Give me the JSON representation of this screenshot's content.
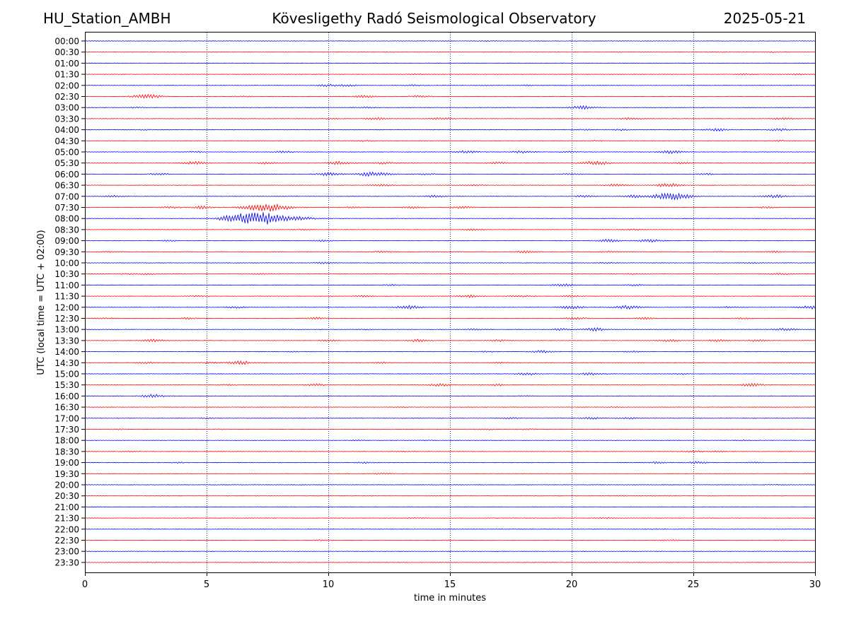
{
  "header": {
    "station": "HU_Station_AMBH",
    "observatory": "Kövesligethy Radó Seismological Observatory",
    "date": "2025-05-21"
  },
  "chart_data": {
    "type": "line",
    "title": "Kövesligethy Radó Seismological Observatory",
    "xlabel": "time in minutes",
    "ylabel": "UTC (local time = UTC + 02:00)",
    "xlim": [
      0,
      30
    ],
    "x_ticks": [
      "0",
      "5",
      "10",
      "15",
      "20",
      "25",
      "30"
    ],
    "grid": "vertical dotted at x ticks",
    "colors": {
      "even_rows": "#0000ff",
      "odd_rows": "#ff0000",
      "grid": "#000080"
    },
    "rows": [
      {
        "label": "00:00",
        "events": [
          {
            "x": 16.5,
            "amp": 0.5
          }
        ]
      },
      {
        "label": "00:30",
        "events": [
          {
            "x": 28.3,
            "amp": 0.6
          },
          {
            "x": 26.0,
            "amp": 0.4
          }
        ]
      },
      {
        "label": "01:00",
        "events": []
      },
      {
        "label": "01:30",
        "events": [
          {
            "x": 27.1,
            "amp": 0.8
          },
          {
            "x": 29.3,
            "amp": 1.0
          },
          {
            "x": 13.5,
            "amp": 0.4
          }
        ]
      },
      {
        "label": "02:00",
        "events": [
          {
            "x": 10.0,
            "amp": 1.5
          },
          {
            "x": 10.8,
            "amp": 1.2
          },
          {
            "x": 13.5,
            "amp": 0.8
          },
          {
            "x": 18.2,
            "amp": 0.7
          },
          {
            "x": 16.4,
            "amp": 0.5
          }
        ]
      },
      {
        "label": "02:30",
        "events": [
          {
            "x": 2.7,
            "amp": 2.2
          },
          {
            "x": 2.2,
            "amp": 1.2
          },
          {
            "x": 11.5,
            "amp": 1.6
          },
          {
            "x": 13.8,
            "amp": 1.3
          },
          {
            "x": 6.5,
            "amp": 0.6
          }
        ]
      },
      {
        "label": "03:00",
        "events": [
          {
            "x": 20.4,
            "amp": 2.2
          },
          {
            "x": 11.5,
            "amp": 0.8
          },
          {
            "x": 2.1,
            "amp": 0.6
          }
        ]
      },
      {
        "label": "03:30",
        "events": [
          {
            "x": 12.0,
            "amp": 1.5
          },
          {
            "x": 14.7,
            "amp": 1.4
          },
          {
            "x": 22.4,
            "amp": 1.3
          },
          {
            "x": 28.7,
            "amp": 1.3
          },
          {
            "x": 10.2,
            "amp": 0.8
          }
        ]
      },
      {
        "label": "04:00",
        "events": [
          {
            "x": 26.0,
            "amp": 1.8
          },
          {
            "x": 28.5,
            "amp": 1.5
          },
          {
            "x": 22.0,
            "amp": 1.0
          },
          {
            "x": 20.5,
            "amp": 0.8
          },
          {
            "x": 2.5,
            "amp": 0.5
          }
        ]
      },
      {
        "label": "04:30",
        "events": [
          {
            "x": 11.5,
            "amp": 0.8
          },
          {
            "x": 28.5,
            "amp": 0.9
          },
          {
            "x": 21.0,
            "amp": 0.6
          }
        ]
      },
      {
        "label": "05:00",
        "events": [
          {
            "x": 8.2,
            "amp": 1.2
          },
          {
            "x": 15.7,
            "amp": 1.8
          },
          {
            "x": 18.0,
            "amp": 1.6
          },
          {
            "x": 24.1,
            "amp": 2.0
          },
          {
            "x": 20.0,
            "amp": 1.0
          },
          {
            "x": 4.6,
            "amp": 0.8
          }
        ]
      },
      {
        "label": "05:30",
        "events": [
          {
            "x": 4.5,
            "amp": 2.0
          },
          {
            "x": 10.5,
            "amp": 2.2
          },
          {
            "x": 21.0,
            "amp": 2.6
          },
          {
            "x": 7.5,
            "amp": 1.4
          },
          {
            "x": 12.3,
            "amp": 1.4
          },
          {
            "x": 17.0,
            "amp": 1.2
          },
          {
            "x": 24.5,
            "amp": 1.0
          }
        ]
      },
      {
        "label": "06:00",
        "events": [
          {
            "x": 10.0,
            "amp": 2.0
          },
          {
            "x": 11.9,
            "amp": 3.2
          },
          {
            "x": 3.0,
            "amp": 1.3
          },
          {
            "x": 14.0,
            "amp": 1.0
          },
          {
            "x": 20.0,
            "amp": 1.0
          },
          {
            "x": 25.5,
            "amp": 1.0
          }
        ]
      },
      {
        "label": "06:30",
        "events": [
          {
            "x": 12.2,
            "amp": 1.5
          },
          {
            "x": 21.8,
            "amp": 1.5
          },
          {
            "x": 24.0,
            "amp": 2.5
          },
          {
            "x": 16.0,
            "amp": 0.7
          }
        ]
      },
      {
        "label": "07:00",
        "events": [
          {
            "x": 24.1,
            "amp": 4.5
          },
          {
            "x": 28.3,
            "amp": 2.0
          },
          {
            "x": 22.5,
            "amp": 1.8
          },
          {
            "x": 14.4,
            "amp": 1.4
          },
          {
            "x": 1.2,
            "amp": 1.1
          },
          {
            "x": 20.5,
            "amp": 1.2
          }
        ]
      },
      {
        "label": "07:30",
        "events": [
          {
            "x": 7.5,
            "amp": 5.5
          },
          {
            "x": 4.8,
            "amp": 1.8
          },
          {
            "x": 3.5,
            "amp": 1.2
          },
          {
            "x": 15.5,
            "amp": 1.5
          },
          {
            "x": 13.5,
            "amp": 1.2
          },
          {
            "x": 28.0,
            "amp": 1.0
          },
          {
            "x": 11.0,
            "amp": 1.0
          }
        ]
      },
      {
        "label": "08:00",
        "events": [
          {
            "x": 6.9,
            "amp": 7.0
          },
          {
            "x": 7.6,
            "amp": 3.5
          },
          {
            "x": 8.9,
            "amp": 2.3
          },
          {
            "x": 6.1,
            "amp": 1.8
          }
        ]
      },
      {
        "label": "08:30",
        "events": [
          {
            "x": 16.0,
            "amp": 1.2
          },
          {
            "x": 22.5,
            "amp": 0.9
          },
          {
            "x": 9.0,
            "amp": 0.7
          }
        ]
      },
      {
        "label": "09:00",
        "events": [
          {
            "x": 21.5,
            "amp": 1.7
          },
          {
            "x": 23.2,
            "amp": 2.0
          },
          {
            "x": 9.8,
            "amp": 0.9
          },
          {
            "x": 3.5,
            "amp": 0.8
          }
        ]
      },
      {
        "label": "09:30",
        "events": [
          {
            "x": 18.1,
            "amp": 1.4
          },
          {
            "x": 12.2,
            "amp": 1.0
          },
          {
            "x": 21.5,
            "amp": 0.9
          },
          {
            "x": 28.3,
            "amp": 0.9
          },
          {
            "x": 1.0,
            "amp": 0.6
          }
        ]
      },
      {
        "label": "10:00",
        "events": [
          {
            "x": 9.8,
            "amp": 1.0
          },
          {
            "x": 21.5,
            "amp": 0.9
          },
          {
            "x": 27.5,
            "amp": 0.8
          }
        ]
      },
      {
        "label": "10:30",
        "events": [
          {
            "x": 2.6,
            "amp": 1.0
          },
          {
            "x": 1.8,
            "amp": 0.8
          },
          {
            "x": 7.3,
            "amp": 0.8
          },
          {
            "x": 28.6,
            "amp": 1.1
          },
          {
            "x": 22.5,
            "amp": 0.7
          }
        ]
      },
      {
        "label": "11:00",
        "events": [
          {
            "x": 19.6,
            "amp": 1.6
          },
          {
            "x": 22.6,
            "amp": 1.1
          },
          {
            "x": 12.6,
            "amp": 0.9
          }
        ]
      },
      {
        "label": "11:30",
        "events": [
          {
            "x": 15.8,
            "amp": 1.6
          },
          {
            "x": 17.8,
            "amp": 1.2
          },
          {
            "x": 11.5,
            "amp": 1.0
          },
          {
            "x": 20.0,
            "amp": 1.0
          },
          {
            "x": 4.6,
            "amp": 0.8
          }
        ]
      },
      {
        "label": "12:00",
        "events": [
          {
            "x": 13.3,
            "amp": 2.3
          },
          {
            "x": 6.2,
            "amp": 1.1
          },
          {
            "x": 20.0,
            "amp": 2.0
          },
          {
            "x": 22.3,
            "amp": 2.3
          },
          {
            "x": 29.9,
            "amp": 2.2
          },
          {
            "x": 26.5,
            "amp": 1.0
          }
        ]
      },
      {
        "label": "12:30",
        "events": [
          {
            "x": 9.5,
            "amp": 1.3
          },
          {
            "x": 4.3,
            "amp": 1.0
          },
          {
            "x": 20.2,
            "amp": 1.4
          },
          {
            "x": 23.0,
            "amp": 1.2
          },
          {
            "x": 0.8,
            "amp": 0.9
          },
          {
            "x": 27.0,
            "amp": 0.8
          }
        ]
      },
      {
        "label": "13:00",
        "events": [
          {
            "x": 21.0,
            "amp": 2.0
          },
          {
            "x": 28.8,
            "amp": 1.6
          },
          {
            "x": 19.6,
            "amp": 1.3
          },
          {
            "x": 16.0,
            "amp": 0.9
          },
          {
            "x": 11.5,
            "amp": 0.7
          }
        ]
      },
      {
        "label": "13:30",
        "events": [
          {
            "x": 2.8,
            "amp": 1.8
          },
          {
            "x": 13.7,
            "amp": 1.8
          },
          {
            "x": 17.0,
            "amp": 1.2
          },
          {
            "x": 24.0,
            "amp": 1.5
          },
          {
            "x": 26.0,
            "amp": 1.4
          },
          {
            "x": 27.6,
            "amp": 1.2
          },
          {
            "x": 10.0,
            "amp": 1.0
          }
        ]
      },
      {
        "label": "14:00",
        "events": [
          {
            "x": 18.8,
            "amp": 1.6
          },
          {
            "x": 16.5,
            "amp": 0.8
          },
          {
            "x": 22.5,
            "amp": 0.8
          },
          {
            "x": 8.5,
            "amp": 0.5
          }
        ]
      },
      {
        "label": "14:30",
        "events": [
          {
            "x": 6.4,
            "amp": 2.3
          },
          {
            "x": 2.5,
            "amp": 1.2
          },
          {
            "x": 5.1,
            "amp": 1.0
          },
          {
            "x": 12.2,
            "amp": 0.9
          },
          {
            "x": 17.0,
            "amp": 0.8
          }
        ]
      },
      {
        "label": "15:00",
        "events": [
          {
            "x": 18.2,
            "amp": 1.6
          },
          {
            "x": 20.8,
            "amp": 1.6
          },
          {
            "x": 24.5,
            "amp": 0.8
          }
        ]
      },
      {
        "label": "15:30",
        "events": [
          {
            "x": 14.6,
            "amp": 1.8
          },
          {
            "x": 9.5,
            "amp": 1.4
          },
          {
            "x": 16.9,
            "amp": 1.2
          },
          {
            "x": 27.4,
            "amp": 1.8
          },
          {
            "x": 6.0,
            "amp": 0.9
          }
        ]
      },
      {
        "label": "16:00",
        "events": [
          {
            "x": 2.8,
            "amp": 2.0
          },
          {
            "x": 18.0,
            "amp": 0.5
          }
        ]
      },
      {
        "label": "16:30",
        "events": [
          {
            "x": 21.8,
            "amp": 0.6
          },
          {
            "x": 13.0,
            "amp": 0.4
          }
        ]
      },
      {
        "label": "17:00",
        "events": [
          {
            "x": 20.8,
            "amp": 1.3
          },
          {
            "x": 22.3,
            "amp": 1.2
          },
          {
            "x": 17.5,
            "amp": 0.9
          },
          {
            "x": 5.0,
            "amp": 0.5
          }
        ]
      },
      {
        "label": "17:30",
        "events": [
          {
            "x": 16.5,
            "amp": 0.7
          },
          {
            "x": 18.2,
            "amp": 0.7
          },
          {
            "x": 1.5,
            "amp": 0.5
          },
          {
            "x": 5.5,
            "amp": 0.5
          }
        ]
      },
      {
        "label": "18:00",
        "events": [
          {
            "x": 11.2,
            "amp": 0.6
          },
          {
            "x": 14.0,
            "amp": 0.5
          },
          {
            "x": 27.0,
            "amp": 0.5
          }
        ]
      },
      {
        "label": "18:30",
        "events": [
          {
            "x": 25.0,
            "amp": 1.0
          },
          {
            "x": 26.0,
            "amp": 0.8
          },
          {
            "x": 1.8,
            "amp": 0.6
          },
          {
            "x": 13.0,
            "amp": 0.5
          }
        ]
      },
      {
        "label": "19:00",
        "events": [
          {
            "x": 23.5,
            "amp": 1.2
          },
          {
            "x": 25.2,
            "amp": 1.4
          },
          {
            "x": 11.5,
            "amp": 1.0
          },
          {
            "x": 3.8,
            "amp": 0.7
          },
          {
            "x": 15.0,
            "amp": 0.6
          },
          {
            "x": 27.5,
            "amp": 0.6
          }
        ]
      },
      {
        "label": "19:30",
        "events": [
          {
            "x": 12.2,
            "amp": 0.9
          }
        ]
      },
      {
        "label": "20:00",
        "events": [
          {
            "x": 28.3,
            "amp": 0.4
          }
        ]
      },
      {
        "label": "20:30",
        "events": [
          {
            "x": 22.0,
            "amp": 0.4
          },
          {
            "x": 24.0,
            "amp": 0.4
          }
        ]
      },
      {
        "label": "21:00",
        "events": []
      },
      {
        "label": "21:30",
        "events": [
          {
            "x": 21.5,
            "amp": 0.8
          },
          {
            "x": 13.5,
            "amp": 0.4
          }
        ]
      },
      {
        "label": "22:00",
        "events": [
          {
            "x": 23.5,
            "amp": 0.4
          }
        ]
      },
      {
        "label": "22:30",
        "events": [
          {
            "x": 24.0,
            "amp": 1.0
          },
          {
            "x": 9.7,
            "amp": 0.6
          },
          {
            "x": 15.0,
            "amp": 0.4
          },
          {
            "x": 28.5,
            "amp": 0.4
          }
        ]
      },
      {
        "label": "23:00",
        "events": []
      },
      {
        "label": "23:30",
        "events": [
          {
            "x": 2.8,
            "amp": 0.4
          }
        ]
      }
    ]
  }
}
